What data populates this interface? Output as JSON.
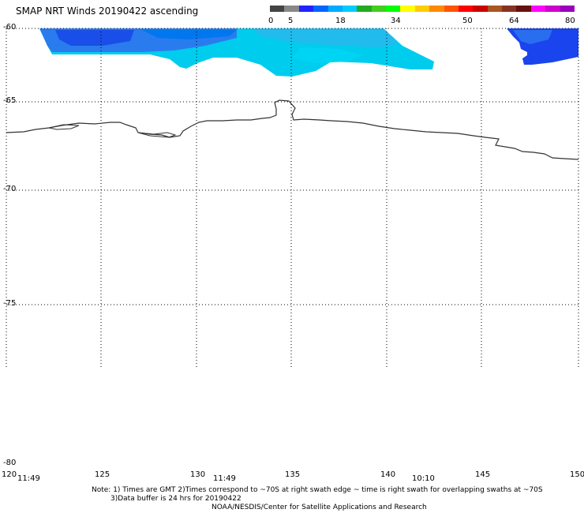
{
  "title": "SMAP NRT Winds 20190422 ascending",
  "colorbar": {
    "labels": [
      "0",
      "5",
      "18",
      "34",
      "50",
      "64",
      "80"
    ],
    "colors": [
      "#444444",
      "#888888",
      "#2222ff",
      "#0066ff",
      "#00aaff",
      "#00ccff",
      "#22aa22",
      "#44cc22",
      "#00ff00",
      "#ffff00",
      "#ffcc00",
      "#ff8800",
      "#ff5500",
      "#ff0000",
      "#cc0000",
      "#aa5522",
      "#883322",
      "#661111",
      "#ff00ff",
      "#cc00cc",
      "#9900bb"
    ]
  },
  "map": {
    "lat_labels": [
      "-60",
      "-65",
      "-70",
      "-75",
      "-80"
    ],
    "lon_labels": [
      "120",
      "125",
      "130",
      "135",
      "140",
      "145",
      "150"
    ],
    "time_labels": [
      "11:49",
      "11:49",
      "10:10"
    ]
  },
  "notes": {
    "line1": "Note: 1) Times are GMT 2)Times correspond to ~70S at right swath edge ~ time is right swath for overlapping swaths at ~70S",
    "line2": "3)Data buffer is 24 hrs for 20190422",
    "line3": "NOAA/NESDIS/Center for Satellite Applications and Research"
  }
}
